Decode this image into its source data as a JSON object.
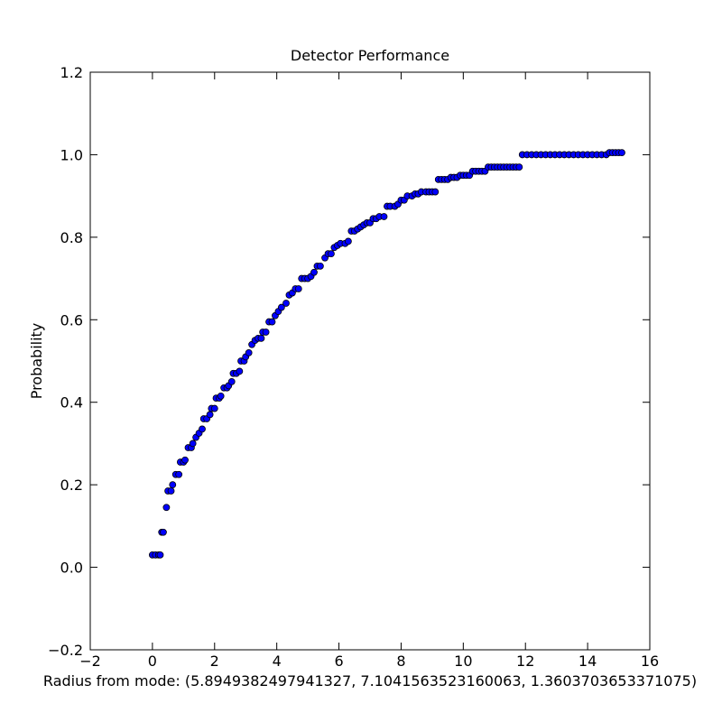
{
  "chart_data": {
    "type": "scatter",
    "title": "Detector Performance",
    "xlabel": "Radius from mode: (5.8949382497941327, 7.1041563523160063, 1.3603703653371075)",
    "ylabel": "Probability",
    "color": "#0000ff",
    "edgecolor": "#000000",
    "xlim": [
      -2,
      16
    ],
    "ylim": [
      -0.2,
      1.2
    ],
    "xticks": [
      {
        "value": -2,
        "label": "−2"
      },
      0,
      2,
      4,
      6,
      8,
      10,
      12,
      14,
      16
    ],
    "yticks": [
      {
        "value": -0.2,
        "label": "−0.2"
      },
      {
        "value": 0,
        "label": "0.0"
      },
      0.2,
      0.4,
      0.6,
      0.8,
      {
        "value": 1,
        "label": "1.0"
      },
      {
        "value": 1.2,
        "label": "1.2"
      }
    ],
    "x": [
      0,
      0.1,
      0.2,
      0.25,
      0.3,
      0.35,
      0.45,
      0.5,
      0.6,
      0.65,
      0.75,
      0.85,
      0.9,
      1.0,
      1.05,
      1.15,
      1.25,
      1.3,
      1.4,
      1.5,
      1.6,
      1.65,
      1.75,
      1.85,
      1.9,
      2.0,
      2.05,
      2.15,
      2.2,
      2.3,
      2.4,
      2.45,
      2.55,
      2.6,
      2.7,
      2.8,
      2.85,
      2.95,
      3.0,
      3.1,
      3.2,
      3.3,
      3.4,
      3.5,
      3.55,
      3.65,
      3.75,
      3.85,
      3.95,
      4.05,
      4.15,
      4.3,
      4.4,
      4.5,
      4.6,
      4.7,
      4.8,
      4.9,
      5.0,
      5.1,
      5.2,
      5.3,
      5.4,
      5.55,
      5.65,
      5.75,
      5.85,
      5.95,
      6.05,
      6.2,
      6.3,
      6.4,
      6.5,
      6.6,
      6.7,
      6.8,
      6.9,
      7.0,
      7.1,
      7.2,
      7.3,
      7.45,
      7.55,
      7.65,
      7.8,
      7.9,
      8.0,
      8.1,
      8.2,
      8.35,
      8.45,
      8.55,
      8.65,
      8.8,
      8.9,
      9.0,
      9.1,
      9.2,
      9.3,
      9.4,
      9.5,
      9.6,
      9.7,
      9.8,
      9.9,
      10.0,
      10.1,
      10.2,
      10.3,
      10.4,
      10.5,
      10.6,
      10.7,
      10.8,
      10.9,
      11.0,
      11.1,
      11.2,
      11.3,
      11.4,
      11.5,
      11.6,
      11.7,
      11.8,
      11.9,
      12.05,
      12.2,
      12.35,
      12.5,
      12.65,
      12.8,
      12.95,
      13.1,
      13.25,
      13.4,
      13.55,
      13.7,
      13.85,
      14.0,
      14.15,
      14.3,
      14.45,
      14.6,
      14.7,
      14.8,
      14.9,
      15.0,
      15.1
    ],
    "values": [
      0.03,
      0.03,
      0.03,
      0.03,
      0.085,
      0.085,
      0.145,
      0.185,
      0.185,
      0.2,
      0.225,
      0.225,
      0.255,
      0.255,
      0.26,
      0.29,
      0.29,
      0.3,
      0.315,
      0.325,
      0.335,
      0.36,
      0.36,
      0.37,
      0.385,
      0.385,
      0.41,
      0.41,
      0.415,
      0.435,
      0.435,
      0.44,
      0.45,
      0.47,
      0.47,
      0.475,
      0.5,
      0.5,
      0.51,
      0.52,
      0.54,
      0.55,
      0.555,
      0.555,
      0.57,
      0.57,
      0.595,
      0.595,
      0.61,
      0.62,
      0.63,
      0.64,
      0.66,
      0.665,
      0.675,
      0.675,
      0.7,
      0.7,
      0.7,
      0.705,
      0.715,
      0.73,
      0.73,
      0.75,
      0.76,
      0.76,
      0.775,
      0.78,
      0.785,
      0.785,
      0.79,
      0.815,
      0.815,
      0.82,
      0.825,
      0.83,
      0.835,
      0.835,
      0.845,
      0.845,
      0.85,
      0.85,
      0.875,
      0.875,
      0.875,
      0.88,
      0.89,
      0.89,
      0.9,
      0.9,
      0.905,
      0.905,
      0.91,
      0.91,
      0.91,
      0.91,
      0.91,
      0.94,
      0.94,
      0.94,
      0.94,
      0.945,
      0.945,
      0.945,
      0.95,
      0.95,
      0.95,
      0.95,
      0.96,
      0.96,
      0.96,
      0.96,
      0.96,
      0.97,
      0.97,
      0.97,
      0.97,
      0.97,
      0.97,
      0.97,
      0.97,
      0.97,
      0.97,
      0.97,
      1.0,
      1.0,
      1.0,
      1.0,
      1.0,
      1.0,
      1.0,
      1.0,
      1.0,
      1.0,
      1.0,
      1.0,
      1.0,
      1.0,
      1.0,
      1.0,
      1.0,
      1.0,
      1.0,
      1.005,
      1.005,
      1.005,
      1.005,
      1.005
    ]
  }
}
